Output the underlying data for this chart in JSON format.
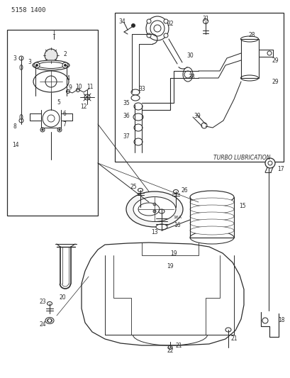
{
  "title": "5158 1400",
  "turbo_label": "TURBO LUBRICATION",
  "bg": "#ffffff",
  "lc": "#2a2a2a",
  "tc": "#2a2a2a",
  "fw": 4.1,
  "fh": 5.33,
  "dpi": 100
}
